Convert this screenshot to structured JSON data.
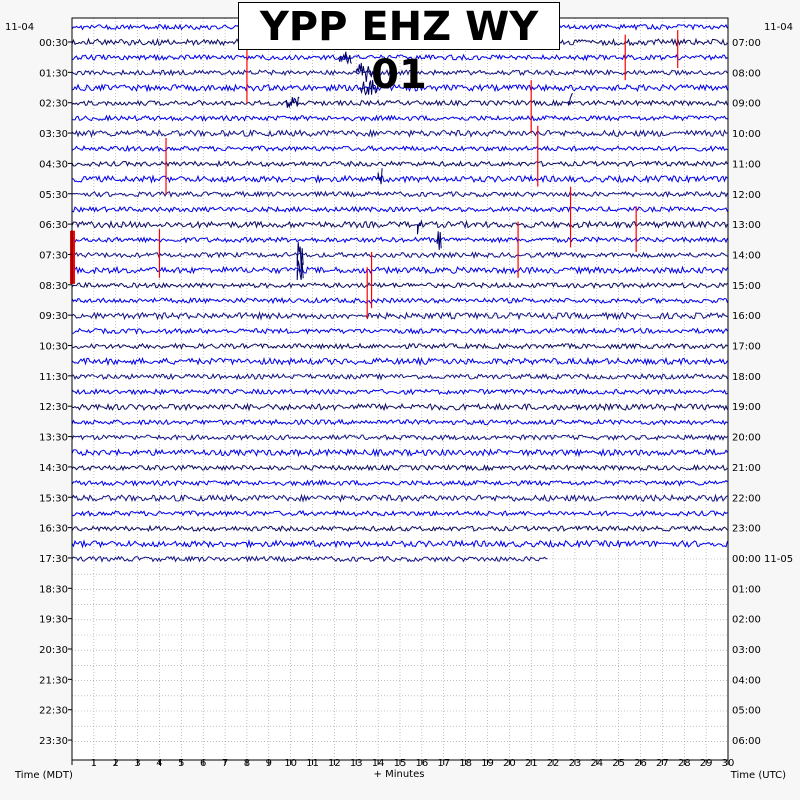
{
  "chart_data": {
    "type": "seismogram",
    "title": "YPP EHZ WY 01",
    "date_left": "11-04",
    "date_right": "11-04",
    "left_axis_label": "Time (MDT)",
    "right_axis_label": "Time (UTC)",
    "x_label": "+ Minutes",
    "x_ticks": [
      "1",
      "2",
      "3",
      "4",
      "5",
      "6",
      "7",
      "8",
      "9",
      "10",
      "11",
      "12",
      "13",
      "14",
      "15",
      "16",
      "17",
      "18",
      "19",
      "20",
      "21",
      "22",
      "23",
      "24",
      "25",
      "26",
      "27",
      "28",
      "29",
      "30"
    ],
    "x_range_minutes": [
      0,
      30
    ],
    "left_times": [
      "00:30",
      "01:30",
      "02:30",
      "03:30",
      "04:30",
      "05:30",
      "06:30",
      "07:30",
      "08:30",
      "09:30",
      "10:30",
      "11:30",
      "12:30",
      "13:30",
      "14:30",
      "15:30",
      "16:30",
      "17:30",
      "18:30",
      "19:30",
      "20:30",
      "21:30",
      "22:30",
      "23:30"
    ],
    "right_times": [
      "07:00",
      "08:00",
      "09:00",
      "10:00",
      "11:00",
      "12:00",
      "13:00",
      "14:00",
      "15:00",
      "16:00",
      "17:00",
      "18:00",
      "19:00",
      "20:00",
      "21:00",
      "22:00",
      "23:00",
      "00:00 11-05",
      "01:00",
      "02:00",
      "03:00",
      "04:00",
      "05:00",
      "06:00"
    ],
    "trace_colors": [
      "#0000ee",
      "#0d0d66",
      "#0000ee",
      "#141488"
    ],
    "event_marker_color": "#ff0000",
    "traces_recorded": 36,
    "last_trace_end_minute": 21.8
  }
}
